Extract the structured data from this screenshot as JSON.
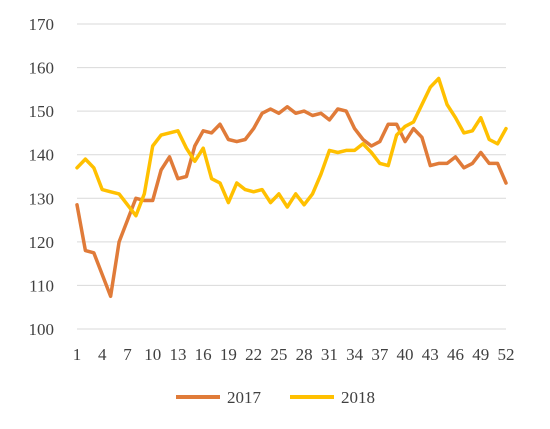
{
  "chart_data": {
    "type": "line",
    "title": "",
    "xlabel": "",
    "ylabel": "",
    "ylim": [
      100,
      170
    ],
    "yticks": [
      100,
      110,
      120,
      130,
      140,
      150,
      160,
      170
    ],
    "xlim": [
      1,
      52
    ],
    "xticks": [
      1,
      4,
      7,
      10,
      13,
      16,
      19,
      22,
      25,
      28,
      31,
      34,
      37,
      40,
      43,
      46,
      49,
      52
    ],
    "grid": "horizontal",
    "legend": "bottom-center",
    "series": [
      {
        "name": "2017",
        "color": "#E07B39",
        "x": [
          1,
          2,
          3,
          4,
          5,
          6,
          7,
          8,
          9,
          10,
          11,
          12,
          13,
          14,
          15,
          16,
          17,
          18,
          19,
          20,
          21,
          22,
          23,
          24,
          25,
          26,
          27,
          28,
          29,
          30,
          31,
          32,
          33,
          34,
          35,
          36,
          37,
          38,
          39,
          40,
          41,
          42,
          43,
          44,
          45,
          46,
          47,
          48,
          49,
          50,
          51,
          52
        ],
        "values": [
          128.5,
          118,
          117.5,
          112.5,
          107.5,
          120,
          125,
          130,
          129.5,
          129.5,
          136.5,
          139.5,
          134.5,
          135,
          142,
          145.5,
          145,
          147,
          143.5,
          143,
          143.5,
          146,
          149.5,
          150.5,
          149.5,
          151,
          149.5,
          150,
          149,
          149.5,
          148,
          150.5,
          150,
          146,
          143.5,
          142,
          143,
          147,
          147,
          143,
          146,
          144,
          137.5,
          138,
          138,
          139.5,
          137,
          138,
          140.5,
          138,
          138,
          133.5
        ]
      },
      {
        "name": "2018",
        "color": "#FFC000",
        "x": [
          1,
          2,
          3,
          4,
          5,
          6,
          7,
          8,
          9,
          10,
          11,
          12,
          13,
          14,
          15,
          16,
          17,
          18,
          19,
          20,
          21,
          22,
          23,
          24,
          25,
          26,
          27,
          28,
          29,
          30,
          31,
          32,
          33,
          34,
          35,
          36,
          37,
          38,
          39,
          40,
          41,
          42,
          43,
          44,
          45,
          46,
          47,
          48,
          49,
          50,
          51,
          52
        ],
        "values": [
          137,
          139,
          137,
          132,
          131.5,
          131,
          128.5,
          126,
          131,
          142,
          144.5,
          145,
          145.5,
          141.5,
          138.5,
          141.5,
          134.5,
          133.5,
          129,
          133.5,
          132,
          131.5,
          132,
          129,
          131,
          128,
          131,
          128.5,
          131,
          135.5,
          141,
          140.5,
          141,
          141,
          142.5,
          140.5,
          138,
          137.5,
          144.5,
          146.5,
          147.5,
          151.5,
          155.5,
          157.5,
          151.5,
          148.5,
          145,
          145.5,
          148.5,
          143.5,
          142.5,
          146
        ]
      }
    ]
  }
}
